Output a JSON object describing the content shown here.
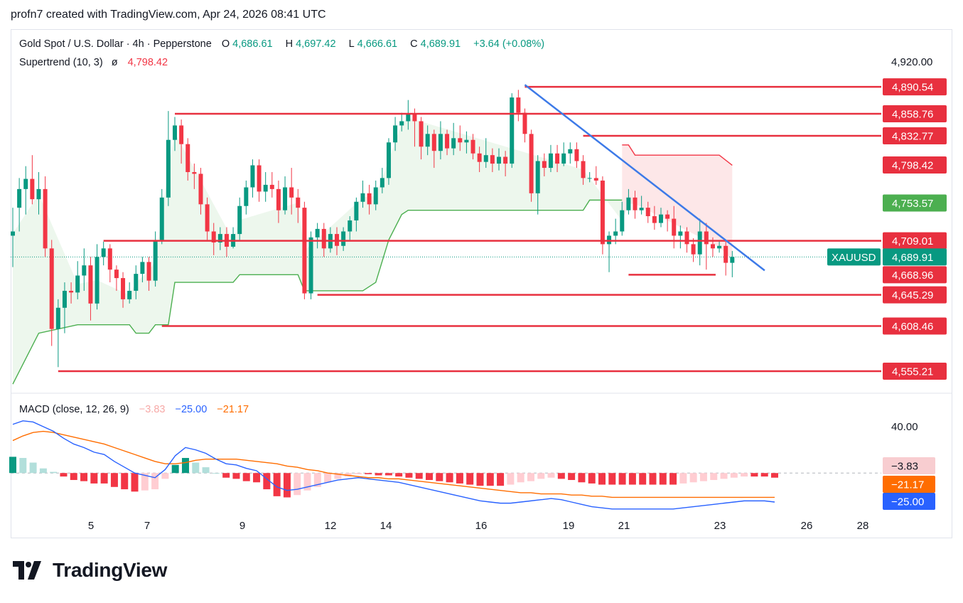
{
  "header": {
    "text": "profn7 created with TradingView.com, Apr 24, 2026 08:41 UTC"
  },
  "legend": {
    "symbol": "Gold Spot / U.S. Dollar · 4h · Pepperstone",
    "open_label": "O",
    "open": "4,686.61",
    "high_label": "H",
    "high": "4,697.42",
    "low_label": "L",
    "low": "4,666.61",
    "close_label": "C",
    "close": "4,689.91",
    "change": "+3.64 (+0.08%)",
    "supertrend_label": "Supertrend (10, 3)",
    "supertrend_eye": "ø",
    "supertrend_value": "4,798.42",
    "macd_label": "MACD (close, 12, 26, 9)",
    "macd_hist": "−3.83",
    "macd_line": "−25.00",
    "macd_signal": "−21.17"
  },
  "logo": {
    "text": "TradingView"
  },
  "colors": {
    "up": "#089981",
    "down": "#f23645",
    "level": "#e8303f",
    "trendline": "#3d7ae8",
    "supertrend_up": "#4caf50",
    "supertrend_down": "#f23645",
    "macd_line": "#2962ff",
    "signal_line": "#ff6d00"
  },
  "chart_data": {
    "type": "candlestick",
    "title": "Gold Spot / U.S. Dollar · 4h · Pepperstone",
    "price_axis": {
      "ticks": [
        "4,920.00"
      ],
      "ylim": [
        4540,
        4925
      ]
    },
    "time_axis": {
      "ticks": [
        "5",
        "7",
        "9",
        "12",
        "14",
        "16",
        "19",
        "21",
        "23",
        "26",
        "28"
      ]
    },
    "grid": false,
    "candles": [
      [
        4715,
        4720,
        4678,
        4748
      ],
      [
        4748,
        4770,
        4720,
        4783
      ],
      [
        4770,
        4782,
        4740,
        4797
      ],
      [
        4782,
        4758,
        4752,
        4810
      ],
      [
        4758,
        4770,
        4740,
        4790
      ],
      [
        4770,
        4700,
        4690,
        4785
      ],
      [
        4700,
        4605,
        4585,
        4710
      ],
      [
        4605,
        4630,
        4560,
        4640
      ],
      [
        4630,
        4650,
        4600,
        4660
      ],
      [
        4650,
        4648,
        4635,
        4660
      ],
      [
        4648,
        4668,
        4640,
        4685
      ],
      [
        4668,
        4680,
        4650,
        4700
      ],
      [
        4680,
        4635,
        4615,
        4690
      ],
      [
        4635,
        4690,
        4628,
        4705
      ],
      [
        4690,
        4700,
        4680,
        4708
      ],
      [
        4700,
        4675,
        4660,
        4705
      ],
      [
        4675,
        4665,
        4650,
        4680
      ],
      [
        4665,
        4640,
        4630,
        4672
      ],
      [
        4640,
        4650,
        4635,
        4660
      ],
      [
        4650,
        4670,
        4640,
        4680
      ],
      [
        4670,
        4684,
        4660,
        4690
      ],
      [
        4684,
        4662,
        4650,
        4690
      ],
      [
        4662,
        4710,
        4655,
        4720
      ],
      [
        4710,
        4760,
        4705,
        4770
      ],
      [
        4760,
        4828,
        4750,
        4862
      ],
      [
        4828,
        4845,
        4815,
        4855
      ],
      [
        4845,
        4823,
        4800,
        4852
      ],
      [
        4823,
        4790,
        4780,
        4830
      ],
      [
        4790,
        4788,
        4770,
        4800
      ],
      [
        4788,
        4752,
        4740,
        4795
      ],
      [
        4752,
        4720,
        4710,
        4760
      ],
      [
        4720,
        4707,
        4692,
        4730
      ],
      [
        4707,
        4717,
        4698,
        4725
      ],
      [
        4717,
        4702,
        4690,
        4725
      ],
      [
        4702,
        4717,
        4700,
        4725
      ],
      [
        4717,
        4750,
        4710,
        4760
      ],
      [
        4750,
        4772,
        4740,
        4780
      ],
      [
        4772,
        4798,
        4760,
        4805
      ],
      [
        4798,
        4767,
        4755,
        4805
      ],
      [
        4767,
        4775,
        4755,
        4790
      ],
      [
        4775,
        4770,
        4760,
        4790
      ],
      [
        4770,
        4745,
        4730,
        4780
      ],
      [
        4745,
        4772,
        4740,
        4785
      ],
      [
        4772,
        4760,
        4740,
        4795
      ],
      [
        4760,
        4748,
        4730,
        4770
      ],
      [
        4748,
        4647,
        4640,
        4755
      ],
      [
        4647,
        4713,
        4640,
        4720
      ],
      [
        4713,
        4723,
        4700,
        4730
      ],
      [
        4723,
        4700,
        4690,
        4730
      ],
      [
        4700,
        4717,
        4695,
        4725
      ],
      [
        4717,
        4703,
        4692,
        4725
      ],
      [
        4703,
        4720,
        4697,
        4725
      ],
      [
        4720,
        4733,
        4710,
        4738
      ],
      [
        4733,
        4755,
        4720,
        4760
      ],
      [
        4755,
        4765,
        4748,
        4780
      ],
      [
        4765,
        4752,
        4740,
        4775
      ],
      [
        4752,
        4772,
        4745,
        4780
      ],
      [
        4772,
        4783,
        4765,
        4795
      ],
      [
        4783,
        4825,
        4775,
        4830
      ],
      [
        4825,
        4845,
        4815,
        4855
      ],
      [
        4845,
        4850,
        4838,
        4860
      ],
      [
        4850,
        4858,
        4840,
        4875
      ],
      [
        4858,
        4850,
        4820,
        4865
      ],
      [
        4850,
        4820,
        4805,
        4855
      ],
      [
        4820,
        4835,
        4810,
        4845
      ],
      [
        4835,
        4815,
        4795,
        4840
      ],
      [
        4815,
        4835,
        4805,
        4850
      ],
      [
        4835,
        4818,
        4810,
        4840
      ],
      [
        4818,
        4830,
        4810,
        4848
      ],
      [
        4830,
        4825,
        4815,
        4845
      ],
      [
        4825,
        4828,
        4812,
        4838
      ],
      [
        4828,
        4812,
        4805,
        4835
      ],
      [
        4812,
        4802,
        4790,
        4820
      ],
      [
        4802,
        4810,
        4795,
        4830
      ],
      [
        4810,
        4800,
        4790,
        4818
      ],
      [
        4800,
        4808,
        4792,
        4818
      ],
      [
        4808,
        4800,
        4785,
        4815
      ],
      [
        4800,
        4878,
        4795,
        4883
      ],
      [
        4878,
        4860,
        4850,
        4887
      ],
      [
        4860,
        4835,
        4825,
        4865
      ],
      [
        4835,
        4765,
        4755,
        4840
      ],
      [
        4765,
        4803,
        4740,
        4810
      ],
      [
        4803,
        4795,
        4785,
        4812
      ],
      [
        4795,
        4812,
        4790,
        4822
      ],
      [
        4812,
        4800,
        4790,
        4822
      ],
      [
        4800,
        4812,
        4797,
        4825
      ],
      [
        4812,
        4817,
        4800,
        4825
      ],
      [
        4817,
        4803,
        4795,
        4825
      ],
      [
        4803,
        4783,
        4775,
        4810
      ],
      [
        4783,
        4783,
        4778,
        4790
      ],
      [
        4783,
        4780,
        4775,
        4797
      ],
      [
        4780,
        4705,
        4693,
        4785
      ],
      [
        4705,
        4715,
        4672,
        4720
      ],
      [
        4715,
        4720,
        4705,
        4735
      ],
      [
        4720,
        4745,
        4715,
        4755
      ],
      [
        4745,
        4760,
        4740,
        4770
      ],
      [
        4760,
        4745,
        4735,
        4768
      ],
      [
        4745,
        4748,
        4740,
        4762
      ],
      [
        4748,
        4738,
        4730,
        4755
      ],
      [
        4738,
        4730,
        4722,
        4750
      ],
      [
        4730,
        4740,
        4725,
        4748
      ],
      [
        4740,
        4735,
        4720,
        4745
      ],
      [
        4735,
        4715,
        4700,
        4750
      ],
      [
        4715,
        4720,
        4700,
        4727
      ],
      [
        4720,
        4705,
        4695,
        4725
      ],
      [
        4705,
        4693,
        4684,
        4712
      ],
      [
        4693,
        4720,
        4680,
        4735
      ],
      [
        4720,
        4705,
        4675,
        4730
      ],
      [
        4705,
        4700,
        4690,
        4713
      ],
      [
        4700,
        4703,
        4695,
        4710
      ],
      [
        4703,
        4683,
        4668,
        4708
      ],
      [
        4683,
        4690,
        4666,
        4697
      ]
    ],
    "supertrend": {
      "value": 4798.42,
      "up_segments": [
        [
          0,
          4540
        ],
        [
          4,
          4600
        ],
        [
          10,
          4610
        ],
        [
          13,
          4610
        ],
        [
          18,
          4610
        ],
        [
          19,
          4600
        ],
        [
          21,
          4600
        ],
        [
          22,
          4610
        ],
        [
          24,
          4610
        ],
        [
          25,
          4660
        ],
        [
          34,
          4660
        ],
        [
          35,
          4669
        ],
        [
          44,
          4669
        ],
        [
          45,
          4650
        ],
        [
          54,
          4650
        ],
        [
          56,
          4660
        ],
        [
          58,
          4710
        ],
        [
          60,
          4740
        ],
        [
          61,
          4745
        ],
        [
          88,
          4745
        ],
        [
          89,
          4757
        ],
        [
          94,
          4757
        ]
      ],
      "down_segments": [
        [
          94,
          4822
        ],
        [
          95,
          4822
        ],
        [
          96,
          4810
        ],
        [
          109,
          4810
        ],
        [
          111,
          4798
        ]
      ]
    },
    "levels": [
      {
        "value": 4890.54,
        "label": "4,890.54"
      },
      {
        "value": 4858.76,
        "label": "4,858.76"
      },
      {
        "value": 4832.77,
        "label": "4,832.77"
      },
      {
        "value": 4798.42,
        "label": "4,798.42"
      },
      {
        "value": 4753.57,
        "label": "4,753.57"
      },
      {
        "value": 4709.01,
        "label": "4,709.01"
      },
      {
        "value": 4689.91,
        "label": "4,689.91",
        "symbol": "XAUUSD"
      },
      {
        "value": 4668.96,
        "label": "4,668.96"
      },
      {
        "value": 4645.29,
        "label": "4,645.29"
      },
      {
        "value": 4608.46,
        "label": "4,608.46"
      },
      {
        "value": 4555.21,
        "label": "4,555.21"
      }
    ],
    "horizontal_lines": [
      {
        "value": 4890.54,
        "from": 79
      },
      {
        "value": 4858.76,
        "from": 25
      },
      {
        "value": 4832.77,
        "from": 88
      },
      {
        "value": 4709.01,
        "from": 14
      },
      {
        "value": 4668.96,
        "from": 95,
        "to": 108
      },
      {
        "value": 4645.29,
        "from": 47
      },
      {
        "value": 4608.46,
        "from": 23
      },
      {
        "value": 4555.21,
        "from": 7
      }
    ],
    "trendline": {
      "from": [
        79,
        4893
      ],
      "to": [
        116,
        4674
      ]
    },
    "macd": {
      "axis_ticks": [
        "40.00"
      ],
      "ylim": [
        -50,
        60
      ],
      "macd_line": [
        42,
        45,
        44,
        40,
        36,
        30,
        25,
        22,
        18,
        16,
        10,
        5,
        0,
        -2,
        -4,
        3,
        15,
        22,
        20,
        17,
        12,
        8,
        7,
        4,
        2,
        -5,
        -12,
        -15,
        -14,
        -12,
        -10,
        -8,
        -6,
        -5,
        -4,
        -5,
        -6,
        -7,
        -8,
        -10,
        -12,
        -14,
        -16,
        -18,
        -20,
        -22,
        -24,
        -25,
        -26,
        -26,
        -25,
        -24,
        -23,
        -22,
        -23,
        -25,
        -27,
        -29,
        -30,
        -31,
        -31,
        -31,
        -31,
        -31,
        -31,
        -31,
        -30,
        -29,
        -28,
        -27,
        -26,
        -25,
        -24,
        -24,
        -24,
        -25
      ],
      "signal_line": [
        28,
        32,
        35,
        36,
        35,
        33,
        31,
        29,
        27,
        25,
        22,
        19,
        16,
        13,
        10,
        8,
        8,
        9,
        11,
        12,
        12,
        12,
        12,
        11,
        10,
        9,
        8,
        6,
        5,
        3,
        2,
        0,
        -1,
        -2,
        -3,
        -4,
        -4,
        -5,
        -5,
        -6,
        -7,
        -8,
        -9,
        -10,
        -11,
        -12,
        -13,
        -14,
        -15,
        -16,
        -17,
        -17,
        -18,
        -18,
        -18,
        -19,
        -19,
        -20,
        -20,
        -21,
        -21,
        -21,
        -21,
        -21,
        -21,
        -21,
        -21,
        -21,
        -21,
        -21,
        -21,
        -21,
        -21,
        -21,
        -21,
        -21
      ],
      "histogram_last": -3.83,
      "macd_last": -25.0,
      "signal_last": -21.17
    }
  }
}
